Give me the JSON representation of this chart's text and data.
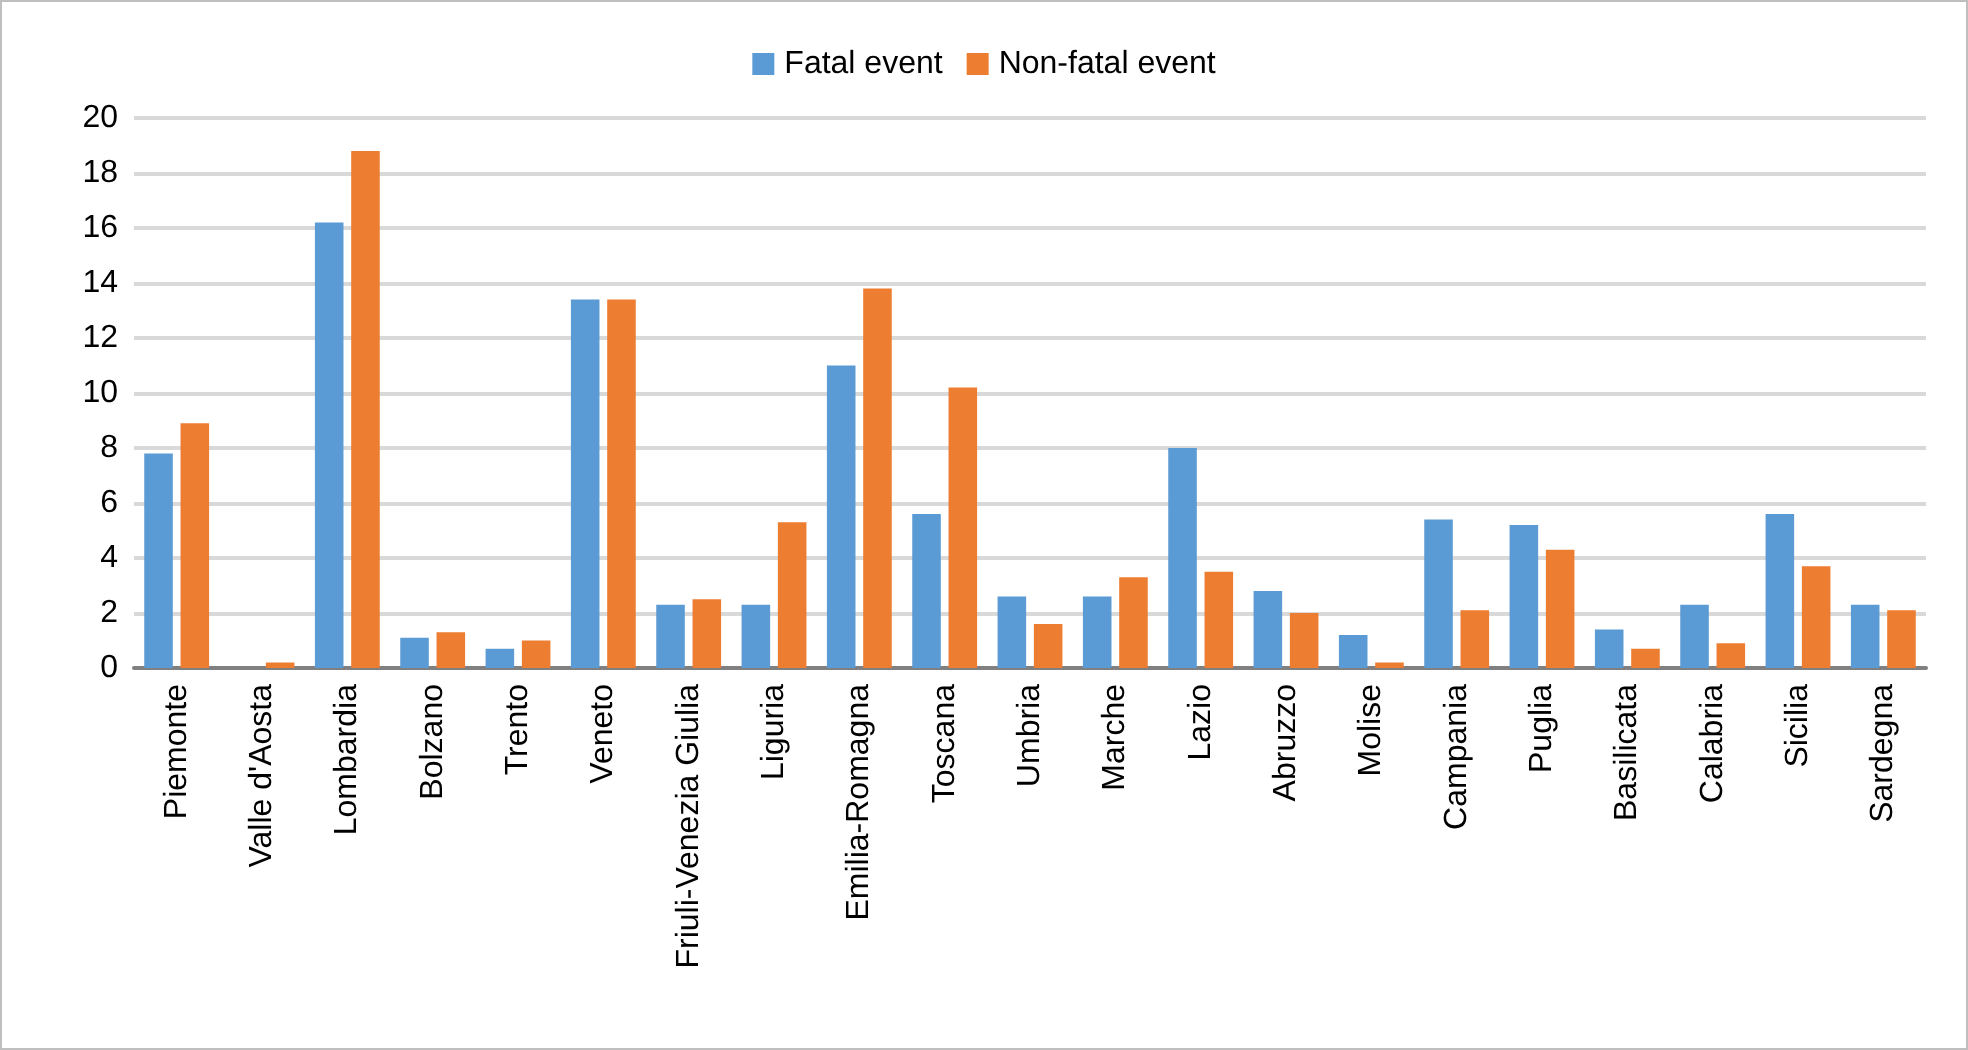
{
  "chart_data": {
    "type": "bar",
    "categories": [
      "Piemonte",
      "Valle d'Aosta",
      "Lombardia",
      "Bolzano",
      "Trento",
      "Veneto",
      "Friuli-Venezia Giulia",
      "Liguria",
      "Emilia-Romagna",
      "Toscana",
      "Umbria",
      "Marche",
      "Lazio",
      "Abruzzo",
      "Molise",
      "Campania",
      "Puglia",
      "Basilicata",
      "Calabria",
      "Sicilia",
      "Sardegna"
    ],
    "series": [
      {
        "name": "Fatal event",
        "color": "#5b9bd5",
        "values": [
          7.8,
          0,
          16.2,
          1.1,
          0.7,
          13.4,
          2.3,
          2.3,
          11.0,
          5.6,
          2.6,
          2.6,
          8.0,
          2.8,
          1.2,
          5.4,
          5.2,
          1.4,
          2.3,
          5.6,
          2.3
        ]
      },
      {
        "name": "Non-fatal event",
        "color": "#ed7d31",
        "values": [
          8.9,
          0.2,
          18.8,
          1.3,
          1.0,
          13.4,
          2.5,
          5.3,
          13.8,
          10.2,
          1.6,
          3.3,
          3.5,
          2.0,
          0.2,
          2.1,
          4.3,
          0.7,
          0.9,
          3.7,
          2.1
        ]
      }
    ],
    "ylim": [
      0,
      20
    ],
    "yticks": [
      0,
      2,
      4,
      6,
      8,
      10,
      12,
      14,
      16,
      18,
      20
    ],
    "grid": "y",
    "legend": "top"
  }
}
